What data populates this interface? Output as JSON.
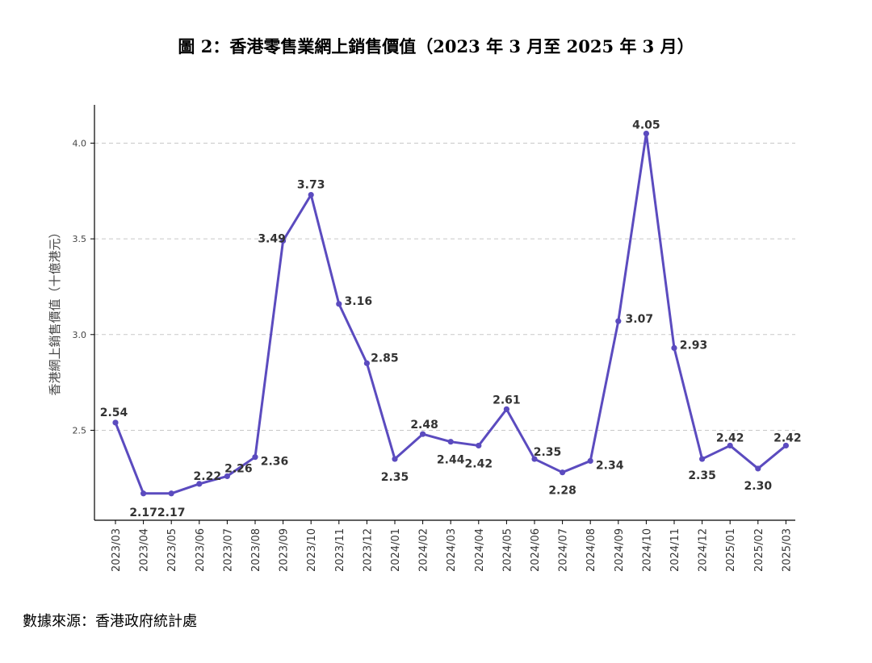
{
  "title": "圖 2：香港零售業網上銷售價值（2023 年 3 月至 2025 年 3 月）",
  "source": "數據來源：香港政府統計處",
  "chart_data": {
    "type": "line",
    "title": "圖 2：香港零售業網上銷售價值（2023 年 3 月至 2025 年 3 月）",
    "ylabel": "香港網上銷售價值（十億港元）",
    "xlabel": "",
    "ylim": [
      2.03,
      4.2
    ],
    "yticks": [
      2.5,
      3.0,
      3.5,
      4.0
    ],
    "ytick_labels": [
      "2.5",
      "3.0",
      "3.5",
      "4.0"
    ],
    "grid": "horizontal dashed",
    "categories": [
      "2023/03",
      "2023/04",
      "2023/05",
      "2023/06",
      "2023/07",
      "2023/08",
      "2023/09",
      "2023/10",
      "2023/11",
      "2023/12",
      "2024/01",
      "2024/02",
      "2024/03",
      "2024/04",
      "2024/05",
      "2024/06",
      "2024/07",
      "2024/08",
      "2024/09",
      "2024/10",
      "2024/11",
      "2024/12",
      "2025/01",
      "2025/02",
      "2025/03"
    ],
    "values": [
      2.54,
      2.17,
      2.17,
      2.22,
      2.26,
      2.36,
      3.49,
      3.73,
      3.16,
      2.85,
      2.35,
      2.48,
      2.44,
      2.42,
      2.61,
      2.35,
      2.28,
      2.34,
      3.07,
      4.05,
      2.93,
      2.35,
      2.42,
      2.3,
      2.42
    ],
    "value_labels": [
      "2.54",
      "2.17",
      "2.17",
      "2.22",
      "2.26",
      "2.36",
      "3.49",
      "3.73",
      "3.16",
      "2.85",
      "2.35",
      "2.48",
      "2.44",
      "2.42",
      "2.61",
      "2.35",
      "2.28",
      "2.34",
      "3.07",
      "4.05",
      "2.93",
      "2.35",
      "2.42",
      "2.30",
      "2.42"
    ],
    "line_color": "#5b4bbf"
  }
}
